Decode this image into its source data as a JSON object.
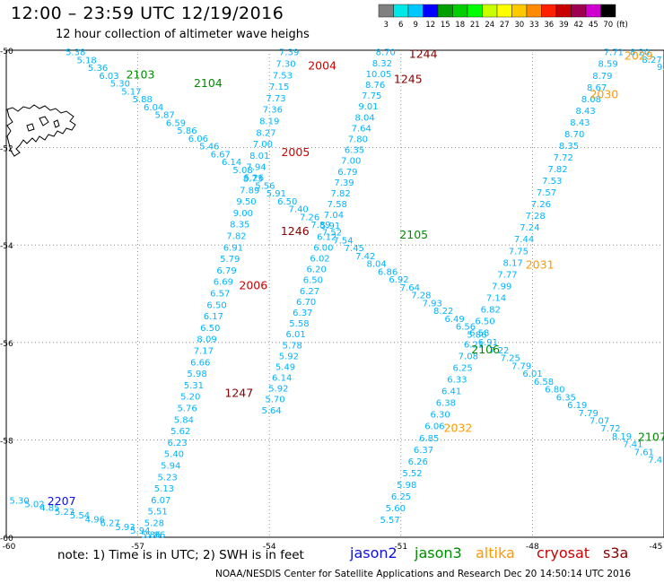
{
  "title": "12:00 – 23:59 UTC 12/19/2016",
  "subtitle": "12 hour collection of altimeter wave heighs",
  "note": "note:  1) Time is in UTC;  2) SWH is in feet",
  "footer": "NOAA/NESDIS Center for Satellite Applications and Research   Dec 20 14:50:14 UTC 2016",
  "satellites": [
    {
      "name": "jason2",
      "color": "#1010e0"
    },
    {
      "name": "jason3",
      "color": "#008c00"
    },
    {
      "name": "altika",
      "color": "#ff9900"
    },
    {
      "name": "cryosat",
      "color": "#cc0000"
    },
    {
      "name": "s3a",
      "color": "#880000"
    }
  ],
  "colorbar": {
    "unit": "(ft)",
    "labels": [
      "3",
      "6",
      "9",
      "12",
      "15",
      "18",
      "21",
      "24",
      "27",
      "30",
      "33",
      "36",
      "39",
      "42",
      "45",
      "70"
    ],
    "colors": [
      "#808080",
      "#00e8e8",
      "#00c8ff",
      "#0000ff",
      "#00a000",
      "#00d000",
      "#00ff00",
      "#c8ff00",
      "#ffff00",
      "#ffc800",
      "#ff8c00",
      "#ff2000",
      "#c80000",
      "#a00050",
      "#d000d0",
      "#000000"
    ]
  },
  "chart_data": {
    "type": "scatter",
    "xlim": [
      -60,
      -45
    ],
    "ylim": [
      -60,
      -50
    ],
    "xticks": [
      -60,
      -57,
      -54,
      -51,
      -48,
      -45
    ],
    "yticks": [
      -50,
      -52,
      -54,
      -56,
      -58,
      -60
    ],
    "xtick_labels": [
      "-60",
      "-57",
      "-54",
      "-51",
      "-48",
      "-45"
    ],
    "ytick_labels": [
      "-50",
      "-52",
      "-54",
      "-56",
      "-58",
      "-60"
    ],
    "grid": "dotted",
    "value_color": "#00b4ff",
    "tracks": [
      {
        "a": [
          -58.42,
          -50.05
        ],
        "b": [
          -45.2,
          -58.42
        ],
        "values": [
          "5.38",
          "5.18",
          "5.36",
          "6.03",
          "5.30",
          "5.17",
          "5.88",
          "6.04",
          "5.87",
          "6.59",
          "5.86",
          "6.06",
          "5.46",
          "6.67",
          "6.14",
          "5.08",
          "5.26",
          "5.56",
          "5.91",
          "6.50",
          "7.40",
          "7.26",
          "7.89",
          "7.52",
          "7.54",
          "7.45",
          "7.42",
          "8.04",
          "6.86",
          "6.92",
          "7.64",
          "7.28",
          "7.93",
          "8.22",
          "6.49",
          "6.56",
          "5.86",
          "6.91",
          "7.22",
          "7.25",
          "7.79",
          "6.01",
          "6.58",
          "6.80",
          "6.35",
          "6.19",
          "7.79",
          "7.07",
          "7.72",
          "8.19",
          "7.41",
          "7.61",
          "7.4"
        ],
        "labels": [
          {
            "text": "2103",
            "t": 0.05,
            "sat": "jason3",
            "dx": 40,
            "dy": 2
          },
          {
            "text": "2104",
            "t": 0.08,
            "sat": "jason3",
            "dx": 96,
            "dy": -2
          },
          {
            "text": "2105",
            "t": 0.5,
            "sat": "jason3",
            "dx": 54,
            "dy": -24
          },
          {
            "text": "2106",
            "t": 0.76,
            "sat": "jason3",
            "dx": -34,
            "dy": -14
          },
          {
            "text": "2107",
            "t": 0.97,
            "sat": "jason3",
            "dx": 16,
            "dy": -12
          }
        ]
      },
      {
        "a": [
          -59.7,
          -59.25
        ],
        "b": [
          -56.6,
          -59.95
        ],
        "values": [
          "5.30",
          "5.02",
          "4.85",
          "5.23",
          "5.54",
          "4.96",
          "6.27",
          "5.93",
          "5.94",
          "5.86"
        ],
        "labels": [
          {
            "text": "2207",
            "t": 0.02,
            "sat": "jason2",
            "dx": 44,
            "dy": 0
          }
        ]
      },
      {
        "a": [
          -56.7,
          -59.95
        ],
        "b": [
          -53.55,
          -50.05
        ],
        "values": [
          "5.86",
          "5.28",
          "5.51",
          "6.07",
          "5.13",
          "5.23",
          "5.94",
          "5.40",
          "6.23",
          "5.62",
          "5.84",
          "5.76",
          "5.20",
          "5.31",
          "5.98",
          "6.66",
          "7.17",
          "8.09",
          "6.50",
          "6.17",
          "6.50",
          "6.57",
          "6.69",
          "6.79",
          "5.79",
          "6.91",
          "7.82",
          "8.35",
          "9.00",
          "9.50",
          "7.89",
          "8.73",
          "7.94",
          "8.01",
          "7.00",
          "8.27",
          "8.19",
          "7.36",
          "7.73",
          "7.15",
          "7.53",
          "7.30",
          "7.39"
        ],
        "labels": [
          {
            "text": "2004",
            "t": 0.98,
            "sat": "cryosat",
            "dx": 40,
            "dy": 4
          },
          {
            "text": "2005",
            "t": 0.8,
            "sat": "cryosat",
            "dx": 38,
            "dy": 4
          },
          {
            "text": "2006",
            "t": 0.52,
            "sat": "cryosat",
            "dx": 34,
            "dy": 2
          },
          {
            "text": "1247",
            "t": 0.26,
            "sat": "s3a",
            "dx": 58,
            "dy": -18
          },
          {
            "text": "1246",
            "t": 0.64,
            "sat": "s3a",
            "dx": 62,
            "dy": 6
          }
        ]
      },
      {
        "a": [
          -53.95,
          -57.4
        ],
        "b": [
          -51.35,
          -50.05
        ],
        "values": [
          "5.64",
          "5.70",
          "5.92",
          "6.14",
          "5.49",
          "5.92",
          "5.78",
          "6.01",
          "5.58",
          "6.37",
          "6.70",
          "6.27",
          "6.50",
          "6.20",
          "6.02",
          "6.00",
          "6.12",
          "5.91",
          "7.04",
          "7.58",
          "7.82",
          "7.39",
          "6.79",
          "7.00",
          "6.35",
          "7.80",
          "7.64",
          "8.04",
          "9.01",
          "7.75",
          "8.76",
          "10.05",
          "8.32",
          "8.70"
        ],
        "labels": [
          {
            "text": "1244",
            "t": 1.0,
            "sat": "s3a",
            "dx": 42,
            "dy": 2
          },
          {
            "text": "1245",
            "t": 0.93,
            "sat": "s3a",
            "dx": 34,
            "dy": 2
          }
        ]
      },
      {
        "a": [
          -51.25,
          -59.65
        ],
        "b": [
          -46.15,
          -50.05
        ],
        "values": [
          "5.57",
          "5.60",
          "6.25",
          "5.98",
          "5.52",
          "6.26",
          "6.37",
          "6.85",
          "6.06",
          "6.30",
          "6.38",
          "6.41",
          "6.33",
          "6.25",
          "7.08",
          "6.21",
          "6.58",
          "6.50",
          "6.82",
          "7.14",
          "7.99",
          "7.77",
          "8.17",
          "7.75",
          "7.44",
          "7.24",
          "7.28",
          "7.26",
          "7.57",
          "7.53",
          "7.82",
          "7.72",
          "8.35",
          "8.70",
          "8.43",
          "8.43",
          "8.08",
          "8.67",
          "8.79",
          "8.59",
          "7.71"
        ],
        "labels": [
          {
            "text": "2032",
            "t": 0.2,
            "sat": "altika",
            "dx": 26,
            "dy": 2
          },
          {
            "text": "2031",
            "t": 0.55,
            "sat": "altika",
            "dx": 30,
            "dy": 2
          },
          {
            "text": "2030",
            "t": 0.91,
            "sat": "altika",
            "dx": 12,
            "dy": 0
          },
          {
            "text": "2029",
            "t": 1.0,
            "sat": "altika",
            "dx": 28,
            "dy": 4
          }
        ]
      },
      {
        "a": [
          -45.55,
          -50.05
        ],
        "b": [
          -45.0,
          -50.35
        ],
        "values": [
          "8.20",
          "8.27",
          "9.1"
        ],
        "labels": []
      }
    ]
  }
}
